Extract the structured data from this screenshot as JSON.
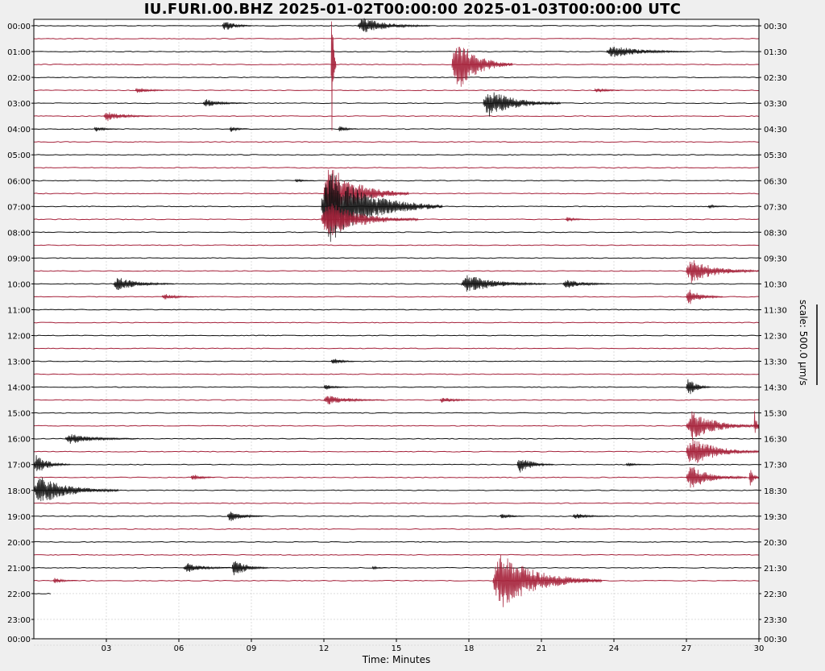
{
  "title": "IU.FURI.00.BHZ 2025-01-02T00:00:00 2025-01-03T00:00:00 UTC",
  "scale_label": "scale: 500.0 µm/s",
  "colors": {
    "trace_dark": "#111111",
    "trace_red": "#a5213a",
    "grid": "#c8c8c8",
    "plot_bg": "#ffffff",
    "page_bg": "#efefef"
  },
  "chart_data": {
    "type": "seismogram-helicorder",
    "title": "IU.FURI.00.BHZ 2025-01-02T00:00:00 2025-01-03T00:00:00 UTC",
    "xlabel": "Time: Minutes",
    "x_ticks": [
      "03",
      "06",
      "09",
      "12",
      "15",
      "18",
      "21",
      "24",
      "27",
      "30"
    ],
    "xlim": [
      0,
      30
    ],
    "left_labels": [
      "00:00",
      "01:00",
      "02:00",
      "03:00",
      "04:00",
      "05:00",
      "06:00",
      "07:00",
      "08:00",
      "09:00",
      "10:00",
      "11:00",
      "12:00",
      "13:00",
      "14:00",
      "15:00",
      "16:00",
      "17:00",
      "18:00",
      "19:00",
      "20:00",
      "21:00",
      "22:00",
      "23:00",
      "00:00"
    ],
    "right_labels": [
      "00:30",
      "01:30",
      "02:30",
      "03:30",
      "04:30",
      "05:30",
      "06:30",
      "07:30",
      "08:30",
      "09:30",
      "10:30",
      "11:30",
      "12:30",
      "13:30",
      "14:30",
      "15:30",
      "16:30",
      "17:30",
      "18:30",
      "19:30",
      "20:30",
      "21:30",
      "22:30",
      "23:30",
      "00:30"
    ],
    "line_interval_minutes": 30,
    "trace_colors": [
      "dark",
      "red"
    ],
    "data_end": {
      "line_index": 44,
      "minute": 0.7
    },
    "grid": true,
    "events": [
      {
        "line": 0,
        "t": 7.8,
        "amp": 0.6,
        "dur": 1.2
      },
      {
        "line": 0,
        "t": 13.4,
        "amp": 0.8,
        "dur": 3.0
      },
      {
        "line": 2,
        "t": 23.7,
        "amp": 0.6,
        "dur": 3.5
      },
      {
        "line": 3,
        "t": 17.3,
        "amp": 2.8,
        "dur": 2.5
      },
      {
        "line": 3,
        "t": 12.3,
        "amp": 9.0,
        "dur": 0.15
      },
      {
        "line": 5,
        "t": 4.2,
        "amp": 0.3,
        "dur": 1.5
      },
      {
        "line": 5,
        "t": 23.2,
        "amp": 0.3,
        "dur": 1.2
      },
      {
        "line": 6,
        "t": 7.0,
        "amp": 0.4,
        "dur": 1.8
      },
      {
        "line": 6,
        "t": 18.6,
        "amp": 1.4,
        "dur": 3.2
      },
      {
        "line": 7,
        "t": 2.9,
        "amp": 0.5,
        "dur": 2.0
      },
      {
        "line": 8,
        "t": 2.5,
        "amp": 0.3,
        "dur": 1.0
      },
      {
        "line": 8,
        "t": 8.1,
        "amp": 0.3,
        "dur": 0.8
      },
      {
        "line": 8,
        "t": 12.6,
        "amp": 0.3,
        "dur": 0.8
      },
      {
        "line": 12,
        "t": 10.8,
        "amp": 0.2,
        "dur": 0.8
      },
      {
        "line": 13,
        "t": 12.0,
        "amp": 2.8,
        "dur": 3.5
      },
      {
        "line": 14,
        "t": 11.9,
        "amp": 3.5,
        "dur": 5.0
      },
      {
        "line": 15,
        "t": 11.9,
        "amp": 1.8,
        "dur": 4.0
      },
      {
        "line": 14,
        "t": 27.9,
        "amp": 0.2,
        "dur": 0.8
      },
      {
        "line": 15,
        "t": 22.0,
        "amp": 0.25,
        "dur": 1.0
      },
      {
        "line": 19,
        "t": 27.0,
        "amp": 1.2,
        "dur": 3.0
      },
      {
        "line": 20,
        "t": 3.3,
        "amp": 0.7,
        "dur": 2.5
      },
      {
        "line": 20,
        "t": 17.7,
        "amp": 0.9,
        "dur": 3.5
      },
      {
        "line": 20,
        "t": 21.9,
        "amp": 0.5,
        "dur": 2.0
      },
      {
        "line": 21,
        "t": 5.3,
        "amp": 0.3,
        "dur": 1.5
      },
      {
        "line": 21,
        "t": 27.0,
        "amp": 0.8,
        "dur": 1.5
      },
      {
        "line": 26,
        "t": 12.3,
        "amp": 0.4,
        "dur": 1.0
      },
      {
        "line": 28,
        "t": 12.0,
        "amp": 0.3,
        "dur": 1.0
      },
      {
        "line": 28,
        "t": 27.0,
        "amp": 1.0,
        "dur": 1.0
      },
      {
        "line": 29,
        "t": 12.0,
        "amp": 0.5,
        "dur": 2.5
      },
      {
        "line": 29,
        "t": 16.8,
        "amp": 0.3,
        "dur": 1.5
      },
      {
        "line": 31,
        "t": 27.0,
        "amp": 1.5,
        "dur": 3.0
      },
      {
        "line": 31,
        "t": 29.8,
        "amp": 1.5,
        "dur": 0.3
      },
      {
        "line": 32,
        "t": 1.3,
        "amp": 0.5,
        "dur": 3.0
      },
      {
        "line": 33,
        "t": 27.0,
        "amp": 1.5,
        "dur": 3.0
      },
      {
        "line": 34,
        "t": 0.0,
        "amp": 1.0,
        "dur": 1.5
      },
      {
        "line": 34,
        "t": 20.0,
        "amp": 0.9,
        "dur": 1.5
      },
      {
        "line": 34,
        "t": 24.5,
        "amp": 0.2,
        "dur": 1.0
      },
      {
        "line": 35,
        "t": 6.5,
        "amp": 0.4,
        "dur": 1.0
      },
      {
        "line": 35,
        "t": 27.0,
        "amp": 1.2,
        "dur": 2.5
      },
      {
        "line": 35,
        "t": 29.6,
        "amp": 1.2,
        "dur": 0.4
      },
      {
        "line": 36,
        "t": 0.0,
        "amp": 1.4,
        "dur": 3.5
      },
      {
        "line": 38,
        "t": 8.0,
        "amp": 0.6,
        "dur": 1.5
      },
      {
        "line": 38,
        "t": 19.3,
        "amp": 0.3,
        "dur": 1.0
      },
      {
        "line": 38,
        "t": 22.3,
        "amp": 0.3,
        "dur": 1.5
      },
      {
        "line": 42,
        "t": 6.2,
        "amp": 0.5,
        "dur": 2.0
      },
      {
        "line": 42,
        "t": 8.2,
        "amp": 0.9,
        "dur": 1.5
      },
      {
        "line": 42,
        "t": 14.0,
        "amp": 0.2,
        "dur": 0.6
      },
      {
        "line": 43,
        "t": 0.8,
        "amp": 0.3,
        "dur": 1.0
      },
      {
        "line": 43,
        "t": 19.0,
        "amp": 2.8,
        "dur": 4.5
      }
    ]
  }
}
